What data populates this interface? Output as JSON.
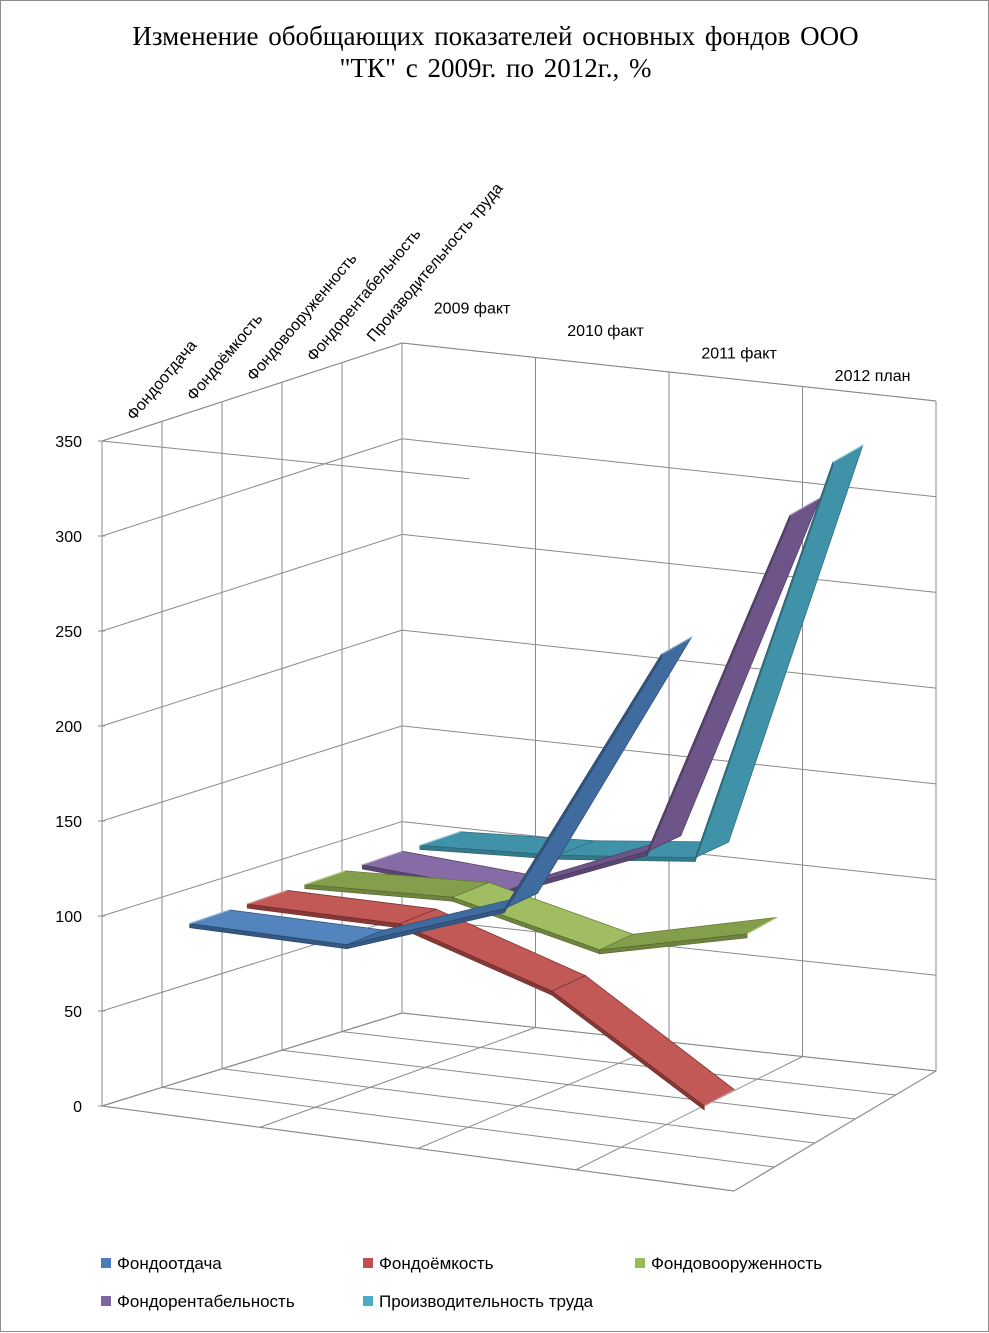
{
  "chart_data": {
    "type": "line",
    "style": "3d",
    "title": "Изменение обобщающих показателей основных фондов ООО \"ТК\" с 2009г. по 2012г., %",
    "title_lines": [
      "Изменение обобщающих показателей основных фондов ООО",
      "\"ТК\" с 2009г. по 2012г., %"
    ],
    "categories": [
      "2009 факт",
      "2010 факт",
      "2011 факт",
      "2012 план"
    ],
    "ylim": [
      0,
      350
    ],
    "yticks": [
      "0",
      "50",
      "100",
      "150",
      "200",
      "250",
      "300",
      "350"
    ],
    "grid": true,
    "legend": "bottom",
    "series": [
      {
        "name": "Фондоотдача",
        "color": "#4a7ebb",
        "values": [
          100,
          100,
          130,
          275
        ]
      },
      {
        "name": "Фондоёмкость",
        "color": "#c0504d",
        "values": [
          100,
          100,
          75,
          25
        ]
      },
      {
        "name": "Фондовооруженность",
        "color": "#9bbb59",
        "values": [
          100,
          103,
          85,
          103
        ]
      },
      {
        "name": "Фондорентабельность",
        "color": "#8064a2",
        "values": [
          100,
          95,
          125,
          310
        ]
      },
      {
        "name": "Производительность труда",
        "color": "#4bacc6",
        "values": [
          100,
          103,
          110,
          325
        ]
      }
    ]
  }
}
